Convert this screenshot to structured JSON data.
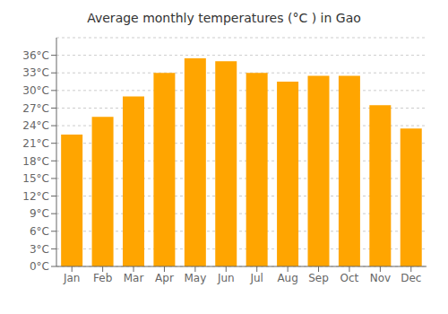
{
  "chart_data": {
    "type": "bar",
    "title": "Average monthly temperatures (°C ) in Gao",
    "categories": [
      "Jan",
      "Feb",
      "Mar",
      "Apr",
      "May",
      "Jun",
      "Jul",
      "Aug",
      "Sep",
      "Oct",
      "Nov",
      "Dec"
    ],
    "values": [
      22.5,
      25.5,
      29.0,
      33.0,
      35.5,
      35.0,
      33.0,
      31.5,
      32.5,
      32.5,
      27.5,
      23.5
    ],
    "color": "#FFA500",
    "ylim": [
      0,
      39
    ],
    "yticks": [
      {
        "value": 0,
        "label": "0°C"
      },
      {
        "value": 3,
        "label": "3°C"
      },
      {
        "value": 6,
        "label": "6°C"
      },
      {
        "value": 9,
        "label": "9°C"
      },
      {
        "value": 12,
        "label": "12°C"
      },
      {
        "value": 15,
        "label": "15°C"
      },
      {
        "value": 18,
        "label": "18°C"
      },
      {
        "value": 21,
        "label": "21°C"
      },
      {
        "value": 24,
        "label": "24°C"
      },
      {
        "value": 27,
        "label": "27°C"
      },
      {
        "value": 30,
        "label": "30°C"
      },
      {
        "value": 33,
        "label": "33°C"
      },
      {
        "value": 36,
        "label": "36°C"
      }
    ],
    "grid": true
  }
}
